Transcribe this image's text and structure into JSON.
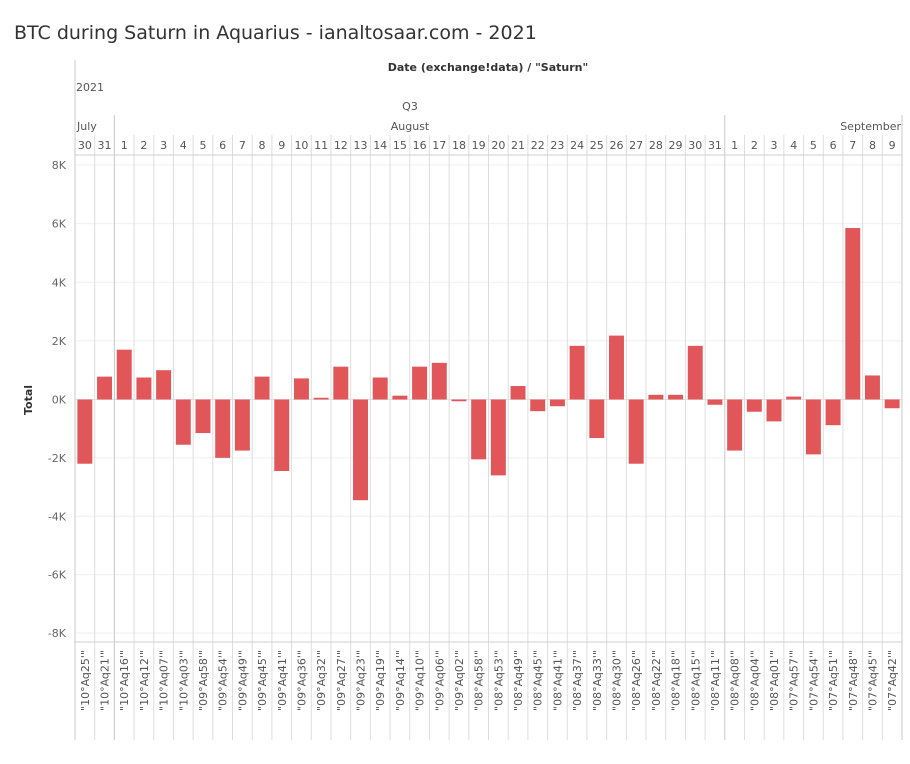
{
  "title": "BTC during Saturn in Aquarius - ianaltosaar.com - 2021",
  "chart_data": {
    "type": "bar",
    "column_header": "Date (exchange!data)  /  \"Saturn\"",
    "year": "2021",
    "quarter": "Q3",
    "months": [
      {
        "label": "July",
        "start_index": 0
      },
      {
        "label": "August",
        "start_index": 2
      },
      {
        "label": "September",
        "start_index": 33
      }
    ],
    "days": [
      "30",
      "31",
      "1",
      "2",
      "3",
      "4",
      "5",
      "6",
      "7",
      "8",
      "9",
      "10",
      "11",
      "12",
      "13",
      "14",
      "15",
      "16",
      "17",
      "18",
      "19",
      "20",
      "21",
      "22",
      "23",
      "24",
      "25",
      "26",
      "27",
      "28",
      "29",
      "30",
      "31",
      "1",
      "2",
      "3",
      "4",
      "5",
      "6",
      "7",
      "8",
      "9"
    ],
    "categories": [
      "\"10°Aq25'\"",
      "\"10°Aq21'\"",
      "\"10°Aq16'\"",
      "\"10°Aq12'\"",
      "\"10°Aq07'\"",
      "\"10°Aq03'\"",
      "\"09°Aq58'\"",
      "\"09°Aq54'\"",
      "\"09°Aq49'\"",
      "\"09°Aq45'\"",
      "\"09°Aq41'\"",
      "\"09°Aq36'\"",
      "\"09°Aq32'\"",
      "\"09°Aq27'\"",
      "\"09°Aq23'\"",
      "\"09°Aq19'\"",
      "\"09°Aq14'\"",
      "\"09°Aq10'\"",
      "\"09°Aq06'\"",
      "\"09°Aq02'\"",
      "\"08°Aq58'\"",
      "\"08°Aq53'\"",
      "\"08°Aq49'\"",
      "\"08°Aq45'\"",
      "\"08°Aq41'\"",
      "\"08°Aq37'\"",
      "\"08°Aq33'\"",
      "\"08°Aq30'\"",
      "\"08°Aq26'\"",
      "\"08°Aq22'\"",
      "\"08°Aq18'\"",
      "\"08°Aq15'\"",
      "\"08°Aq11'\"",
      "\"08°Aq08'\"",
      "\"08°Aq04'\"",
      "\"08°Aq01'\"",
      "\"07°Aq57'\"",
      "\"07°Aq54'\"",
      "\"07°Aq51'\"",
      "\"07°Aq48'\"",
      "\"07°Aq45'\"",
      "\"07°Aq42'\""
    ],
    "values": [
      -2200,
      780,
      1700,
      750,
      1000,
      -1550,
      -1150,
      -2000,
      -1750,
      780,
      -2450,
      720,
      60,
      1120,
      -3450,
      750,
      130,
      1120,
      1250,
      -60,
      -2050,
      -2600,
      460,
      -400,
      -230,
      1830,
      -1320,
      2180,
      -2200,
      160,
      160,
      1830,
      -180,
      -1750,
      -420,
      -750,
      100,
      -1880,
      -880,
      5850,
      820,
      -300
    ],
    "ylabel": "Total",
    "ylim": [
      -8000,
      8000
    ],
    "yticks": [
      {
        "value": 8000,
        "label": "8K"
      },
      {
        "value": 6000,
        "label": "6K"
      },
      {
        "value": 4000,
        "label": "4K"
      },
      {
        "value": 2000,
        "label": "2K"
      },
      {
        "value": 0,
        "label": "0K"
      },
      {
        "value": -2000,
        "label": "-2K"
      },
      {
        "value": -4000,
        "label": "-4K"
      },
      {
        "value": -6000,
        "label": "-6K"
      },
      {
        "value": -8000,
        "label": "-8K"
      }
    ],
    "bar_color": "#e15759",
    "grid": true,
    "legend": "none"
  }
}
